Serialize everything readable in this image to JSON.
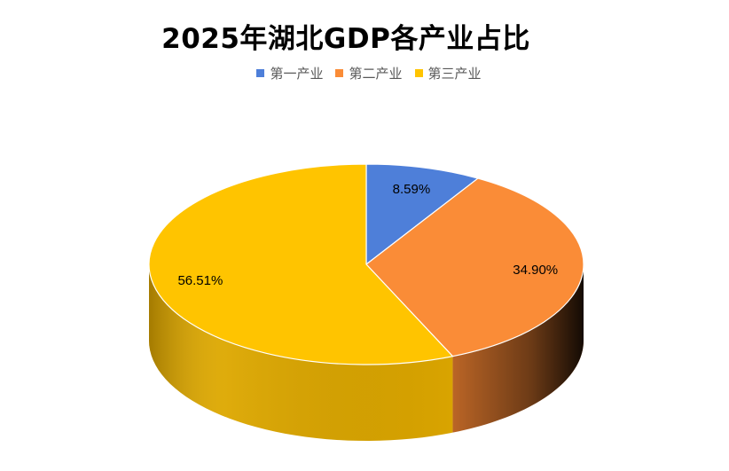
{
  "chart_data": {
    "type": "pie",
    "title": "2025年湖北GDP各产业占比",
    "legend_position": "top",
    "three_d": true,
    "categories": [
      "第一产业",
      "第二产业",
      "第三产业"
    ],
    "values": [
      8.59,
      34.9,
      56.51
    ],
    "data_labels": [
      "8.59%",
      "34.90%",
      "56.51%"
    ],
    "colors": [
      "#4E7FD9",
      "#FA8C37",
      "#FFC400"
    ],
    "side_colors": [
      "#3A63B0",
      "#C46A28",
      "#D9A400"
    ]
  }
}
